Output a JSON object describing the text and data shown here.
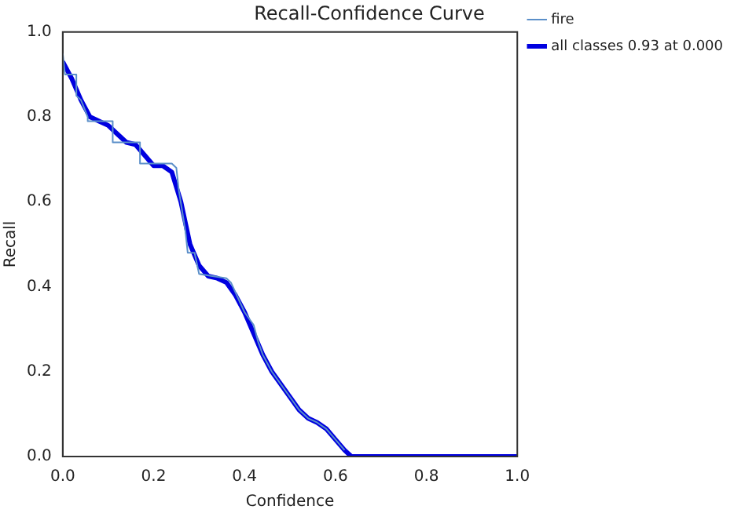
{
  "chart_data": {
    "type": "line",
    "title": "Recall-Confidence Curve",
    "xlabel": "Confidence",
    "ylabel": "Recall",
    "xlim": [
      0,
      1
    ],
    "ylim": [
      0,
      1
    ],
    "xticks": [
      {
        "value": 0,
        "label": "0.0"
      },
      0.2,
      0.4,
      0.6,
      0.8,
      {
        "value": 1,
        "label": "1.0"
      }
    ],
    "yticks": [
      {
        "value": 0,
        "label": "0.0"
      },
      0.2,
      0.4,
      0.6,
      0.8,
      {
        "value": 1,
        "label": "1.0"
      }
    ],
    "legend": "top right",
    "grid": false,
    "marker": "none",
    "line_style": "solid",
    "series": [
      {
        "name": "fire",
        "color": "#5b8fc9",
        "x": [
          0,
          0.005,
          0.03,
          0.03,
          0.04,
          0.055,
          0.055,
          0.11,
          0.11,
          0.17,
          0.17,
          0.24,
          0.25,
          0.255,
          0.27,
          0.275,
          0.29,
          0.3,
          0.36,
          0.37,
          0.4,
          0.42,
          0.43,
          0.44,
          0.46,
          0.48,
          0.5,
          0.52,
          0.54,
          0.56,
          0.58,
          0.6,
          0.62
        ],
        "values": [
          0.95,
          0.9,
          0.9,
          0.85,
          0.84,
          0.8,
          0.79,
          0.79,
          0.74,
          0.74,
          0.69,
          0.69,
          0.68,
          0.63,
          0.53,
          0.48,
          0.48,
          0.43,
          0.42,
          0.41,
          0.34,
          0.31,
          0.27,
          0.24,
          0.2,
          0.17,
          0.14,
          0.11,
          0.09,
          0.08,
          0.065,
          0.04,
          0.015
        ]
      },
      {
        "name": "all classes 0.93 at 0.000",
        "color": "#0000e0",
        "x": [
          0,
          0.02,
          0.04,
          0.06,
          0.08,
          0.1,
          0.12,
          0.14,
          0.16,
          0.18,
          0.2,
          0.22,
          0.24,
          0.26,
          0.28,
          0.3,
          0.32,
          0.34,
          0.36,
          0.38,
          0.4,
          0.42,
          0.44,
          0.46,
          0.48,
          0.5,
          0.52,
          0.54,
          0.56,
          0.58,
          0.6,
          0.62,
          0.635,
          1
        ],
        "values": [
          0.93,
          0.89,
          0.84,
          0.8,
          0.79,
          0.78,
          0.76,
          0.74,
          0.735,
          0.71,
          0.685,
          0.685,
          0.67,
          0.6,
          0.5,
          0.45,
          0.425,
          0.42,
          0.41,
          0.38,
          0.34,
          0.29,
          0.24,
          0.2,
          0.17,
          0.14,
          0.11,
          0.09,
          0.08,
          0.065,
          0.04,
          0.015,
          0,
          0
        ]
      }
    ]
  }
}
